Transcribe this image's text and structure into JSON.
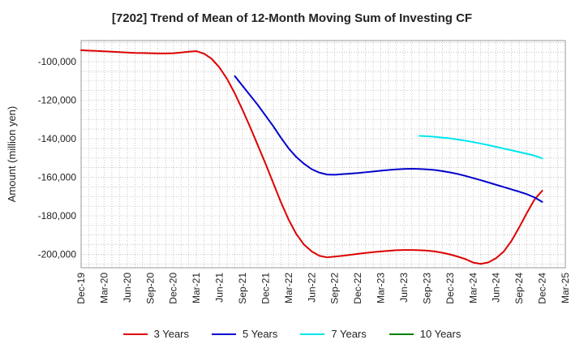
{
  "chart_data": {
    "type": "line",
    "title": "[7202]  Trend of Mean of 12-Month Moving Sum of Investing CF",
    "xlabel": "",
    "ylabel": "Amount (million yen)",
    "x_ticks": [
      "Dec-19",
      "Mar-20",
      "Jun-20",
      "Sep-20",
      "Dec-20",
      "Mar-21",
      "Jun-21",
      "Sep-21",
      "Dec-21",
      "Mar-22",
      "Jun-22",
      "Sep-22",
      "Dec-22",
      "Mar-23",
      "Jun-23",
      "Sep-23",
      "Dec-23",
      "Mar-24",
      "Jun-24",
      "Sep-24",
      "Dec-24",
      "Mar-25"
    ],
    "y_ticks": [
      "-100,000",
      "-120,000",
      "-140,000",
      "-160,000",
      "-180,000",
      "-200,000"
    ],
    "ylim": [
      -207000,
      -89000
    ],
    "grid": true,
    "legend_position": "bottom",
    "series": [
      {
        "name": "3 Years",
        "color": "#dd0000",
        "x": [
          "Dec-19",
          "Jan-20",
          "Feb-20",
          "Mar-20",
          "Apr-20",
          "May-20",
          "Jun-20",
          "Jul-20",
          "Aug-20",
          "Sep-20",
          "Oct-20",
          "Nov-20",
          "Dec-20",
          "Jan-21",
          "Feb-21",
          "Mar-21",
          "Apr-21",
          "May-21",
          "Jun-21",
          "Jul-21",
          "Aug-21",
          "Sep-21",
          "Oct-21",
          "Nov-21",
          "Dec-21",
          "Jan-22",
          "Feb-22",
          "Mar-22",
          "Apr-22",
          "May-22",
          "Jun-22",
          "Jul-22",
          "Aug-22",
          "Sep-22",
          "Oct-22",
          "Nov-22",
          "Dec-22",
          "Jan-23",
          "Feb-23",
          "Mar-23",
          "Apr-23",
          "May-23",
          "Jun-23",
          "Jul-23",
          "Aug-23",
          "Sep-23",
          "Oct-23",
          "Nov-23",
          "Dec-23",
          "Jan-24",
          "Feb-24",
          "Mar-24",
          "Apr-24",
          "May-24",
          "Jun-24",
          "Jul-24",
          "Aug-24",
          "Sep-24",
          "Oct-24",
          "Nov-24",
          "Dec-24"
        ],
        "values": [
          -94000,
          -94200,
          -94400,
          -94600,
          -94800,
          -95000,
          -95200,
          -95400,
          -95500,
          -95600,
          -95700,
          -95700,
          -95600,
          -95200,
          -94800,
          -94500,
          -95800,
          -98500,
          -103000,
          -109000,
          -116500,
          -125000,
          -134000,
          -143500,
          -153000,
          -163000,
          -173000,
          -182000,
          -189500,
          -195000,
          -198500,
          -200800,
          -201600,
          -201200,
          -200800,
          -200300,
          -199800,
          -199300,
          -198900,
          -198500,
          -198200,
          -197900,
          -197800,
          -197800,
          -197900,
          -198100,
          -198500,
          -199200,
          -200100,
          -201200,
          -202500,
          -204300,
          -205000,
          -204200,
          -202000,
          -198500,
          -193000,
          -186000,
          -178500,
          -171500,
          -167000
        ]
      },
      {
        "name": "5 Years",
        "color": "#0000cc",
        "x": [
          "Aug-21",
          "Sep-21",
          "Oct-21",
          "Nov-21",
          "Dec-21",
          "Jan-22",
          "Feb-22",
          "Mar-22",
          "Apr-22",
          "May-22",
          "Jun-22",
          "Jul-22",
          "Aug-22",
          "Sep-22",
          "Oct-22",
          "Nov-22",
          "Dec-22",
          "Jan-23",
          "Feb-23",
          "Mar-23",
          "Apr-23",
          "May-23",
          "Jun-23",
          "Jul-23",
          "Aug-23",
          "Sep-23",
          "Oct-23",
          "Nov-23",
          "Dec-23",
          "Jan-24",
          "Feb-24",
          "Mar-24",
          "Apr-24",
          "May-24",
          "Jun-24",
          "Jul-24",
          "Aug-24",
          "Sep-24",
          "Oct-24",
          "Nov-24",
          "Dec-24"
        ],
        "values": [
          -107500,
          -112500,
          -117500,
          -122500,
          -128000,
          -133500,
          -139500,
          -145000,
          -149500,
          -153000,
          -155800,
          -157600,
          -158600,
          -158700,
          -158400,
          -158100,
          -157800,
          -157400,
          -157000,
          -156600,
          -156200,
          -155900,
          -155700,
          -155600,
          -155700,
          -155900,
          -156200,
          -156800,
          -157500,
          -158300,
          -159300,
          -160400,
          -161500,
          -162700,
          -163900,
          -165100,
          -166300,
          -167500,
          -168800,
          -170500,
          -172800
        ]
      },
      {
        "name": "7 Years",
        "color": "#00e5ee",
        "x": [
          "Aug-23",
          "Sep-23",
          "Oct-23",
          "Nov-23",
          "Dec-23",
          "Jan-24",
          "Feb-24",
          "Mar-24",
          "Apr-24",
          "May-24",
          "Jun-24",
          "Jul-24",
          "Aug-24",
          "Sep-24",
          "Oct-24",
          "Nov-24",
          "Dec-24"
        ],
        "values": [
          -138500,
          -138700,
          -139000,
          -139400,
          -139800,
          -140400,
          -141000,
          -141700,
          -142500,
          -143300,
          -144200,
          -145100,
          -146000,
          -146900,
          -147800,
          -148800,
          -150200
        ]
      },
      {
        "name": "10 Years",
        "color": "#008000",
        "x": [],
        "values": []
      }
    ]
  }
}
